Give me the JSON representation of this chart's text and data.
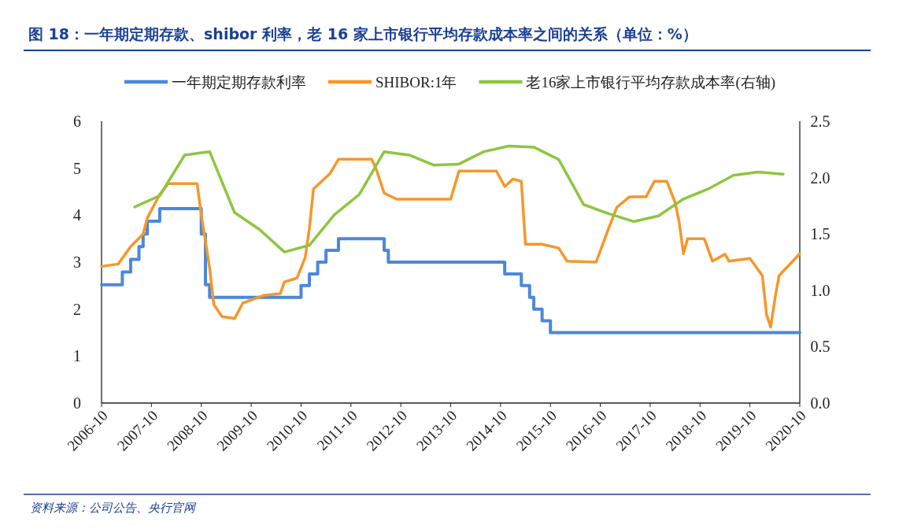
{
  "chart_data": {
    "type": "line",
    "title": "图 18：一年期定期存款、shibor 利率，老 16 家上市银行平均存款成本率之间的关系（单位：%）",
    "legend": "top",
    "xlim": [
      "2006-10",
      "2020-10"
    ],
    "xticks": [
      "2006-10",
      "2007-10",
      "2008-10",
      "2009-10",
      "2010-10",
      "2011-10",
      "2012-10",
      "2013-10",
      "2014-10",
      "2015-10",
      "2016-10",
      "2017-10",
      "2018-10",
      "2019-10",
      "2020-10"
    ],
    "ylim": [
      0,
      6
    ],
    "yticks": [
      0,
      1,
      2,
      3,
      4,
      5,
      6
    ],
    "y2lim": [
      0,
      2.5
    ],
    "y2ticks": [
      {
        "value": 0,
        "label": "0.0"
      },
      {
        "value": 0.5,
        "label": "0.5"
      },
      {
        "value": 1,
        "label": "1.0"
      },
      {
        "value": 1.5,
        "label": "1.5"
      },
      {
        "value": 2,
        "label": "2.0"
      },
      {
        "value": 2.5,
        "label": "2.5"
      }
    ],
    "series": [
      {
        "name": "一年期定期存款利率",
        "type": "step",
        "color": "#4a88da",
        "x": [
          "2006-10",
          "2007-03",
          "2007-05",
          "2007-07",
          "2007-08",
          "2007-09",
          "2007-12",
          "2008-10",
          "2008-11",
          "2008-12",
          "2010-10",
          "2010-12",
          "2011-02",
          "2011-04",
          "2011-07",
          "2012-06",
          "2012-07",
          "2014-11",
          "2015-03",
          "2015-05",
          "2015-06",
          "2015-08",
          "2015-10",
          "2020-10"
        ],
        "values": [
          2.52,
          2.79,
          3.06,
          3.33,
          3.6,
          3.87,
          4.14,
          3.6,
          2.52,
          2.25,
          2.5,
          2.75,
          3.0,
          3.25,
          3.5,
          3.25,
          3.0,
          2.75,
          2.5,
          2.25,
          2.0,
          1.75,
          1.5,
          1.5
        ]
      },
      {
        "name": "SHIBOR:1年",
        "type": "line",
        "color": "#f7962a",
        "x": [
          "2006-10",
          "2007-02",
          "2007-05",
          "2007-08",
          "2007-09",
          "2007-12",
          "2008-02",
          "2008-09",
          "2008-10",
          "2008-12",
          "2009-01",
          "2009-03",
          "2009-06",
          "2009-08",
          "2010-01",
          "2010-05",
          "2010-06",
          "2010-09",
          "2010-11",
          "2010-12",
          "2011-01",
          "2011-05",
          "2011-07",
          "2012-03",
          "2012-04",
          "2012-06",
          "2012-09",
          "2013-10",
          "2013-12",
          "2014-09",
          "2014-11",
          "2015-01",
          "2015-03",
          "2015-04",
          "2015-08",
          "2015-12",
          "2016-02",
          "2016-09",
          "2016-12",
          "2017-02",
          "2017-05",
          "2017-09",
          "2017-11",
          "2018-02",
          "2018-04",
          "2018-05",
          "2018-06",
          "2018-07",
          "2018-11",
          "2019-01",
          "2019-04",
          "2019-05",
          "2019-10",
          "2020-01",
          "2020-02",
          "2020-03",
          "2020-04",
          "2020-05",
          "2020-10"
        ],
        "values": [
          2.91,
          2.96,
          3.33,
          3.6,
          3.94,
          4.44,
          4.67,
          4.67,
          4.0,
          2.88,
          2.1,
          1.84,
          1.8,
          2.13,
          2.29,
          2.33,
          2.58,
          2.66,
          3.1,
          3.72,
          4.56,
          4.89,
          5.19,
          5.19,
          5.0,
          4.47,
          4.34,
          4.34,
          4.94,
          4.94,
          4.61,
          4.77,
          4.72,
          3.38,
          3.38,
          3.3,
          3.02,
          3.0,
          3.72,
          4.17,
          4.39,
          4.39,
          4.72,
          4.72,
          4.27,
          3.84,
          3.18,
          3.5,
          3.5,
          3.02,
          3.17,
          3.02,
          3.08,
          2.71,
          1.88,
          1.62,
          2.21,
          2.71,
          3.18
        ]
      },
      {
        "name": "老16家上市银行平均存款成本率(右轴)",
        "type": "line",
        "axis": "y2",
        "color": "#8dc63f",
        "x": [
          "2007-06",
          "2007-12",
          "2008-06",
          "2008-12",
          "2009-06",
          "2009-12",
          "2010-06",
          "2010-12",
          "2011-06",
          "2011-12",
          "2012-06",
          "2012-12",
          "2013-06",
          "2013-12",
          "2014-06",
          "2014-12",
          "2015-06",
          "2015-12",
          "2016-06",
          "2016-12",
          "2017-06",
          "2017-12",
          "2018-06",
          "2018-12",
          "2019-06",
          "2019-12",
          "2020-06"
        ],
        "values": [
          1.74,
          1.84,
          2.2,
          2.23,
          1.69,
          1.54,
          1.34,
          1.4,
          1.67,
          1.85,
          2.23,
          2.2,
          2.11,
          2.12,
          2.23,
          2.28,
          2.27,
          2.16,
          1.76,
          1.68,
          1.61,
          1.66,
          1.81,
          1.9,
          2.02,
          2.05,
          2.03
        ]
      }
    ],
    "annotations": [
      "资料来源：公司公告、央行官网"
    ]
  }
}
